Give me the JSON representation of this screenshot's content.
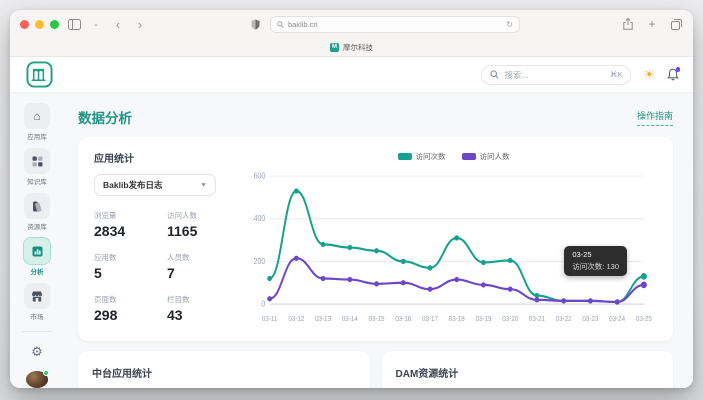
{
  "browser": {
    "url": "baklib.cn",
    "tab_title": "摩尔科技"
  },
  "header": {
    "search_placeholder": "搜索...",
    "search_shortcut": "⌘K"
  },
  "sidebar": {
    "items": [
      {
        "label": "应用库",
        "icon": "home-icon"
      },
      {
        "label": "知识库",
        "icon": "grid-icon"
      },
      {
        "label": "资源库",
        "icon": "swatch-icon"
      },
      {
        "label": "分析",
        "icon": "chart-icon"
      },
      {
        "label": "市场",
        "icon": "store-icon"
      }
    ]
  },
  "page": {
    "title": "数据分析",
    "guide_link": "操作指南"
  },
  "stats_card": {
    "title": "应用统计",
    "select_value": "Baklib发布日志",
    "stats": [
      {
        "label": "浏览量",
        "value": "2834"
      },
      {
        "label": "访问人数",
        "value": "1165"
      },
      {
        "label": "应用数",
        "value": "5"
      },
      {
        "label": "人员数",
        "value": "7"
      },
      {
        "label": "页面数",
        "value": "298"
      },
      {
        "label": "栏目数",
        "value": "43"
      }
    ]
  },
  "chart_data": {
    "type": "line",
    "x": [
      "03-11",
      "03-12",
      "03-13",
      "03-14",
      "03-15",
      "03-16",
      "03-17",
      "03-18",
      "03-19",
      "03-20",
      "03-21",
      "03-22",
      "03-23",
      "03-24",
      "03-25"
    ],
    "series": [
      {
        "name": "访问次数",
        "color": "#17A08C",
        "values": [
          120,
          530,
          280,
          265,
          250,
          200,
          170,
          310,
          195,
          205,
          40,
          15,
          15,
          10,
          130
        ]
      },
      {
        "name": "访问人数",
        "color": "#6C47C8",
        "values": [
          25,
          215,
          120,
          115,
          95,
          100,
          70,
          115,
          90,
          70,
          20,
          15,
          15,
          10,
          90
        ]
      }
    ],
    "ylim": [
      0,
      600
    ],
    "yticks": [
      0,
      200,
      400,
      600
    ],
    "legend_position": "top",
    "tooltip": {
      "date": "03-25",
      "text": "访问次数: 130"
    }
  },
  "bottom_cards": [
    {
      "title": "中台应用统计"
    },
    {
      "title": "DAM资源统计"
    }
  ],
  "colors": {
    "brand_teal": "#1CA089",
    "series_purple": "#6C47C8",
    "notification_purple": "#7B3FF2",
    "sun_orange": "#F6A821"
  }
}
